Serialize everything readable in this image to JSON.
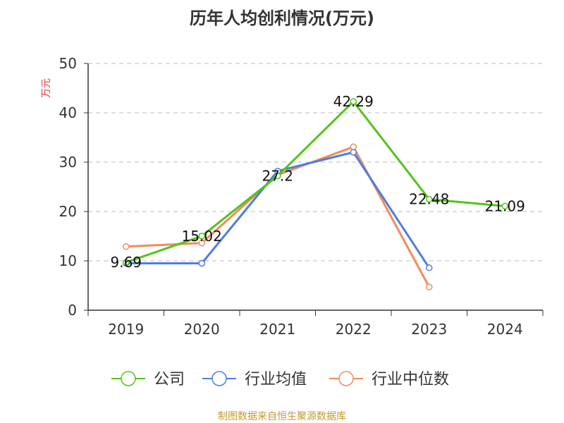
{
  "chart_data": {
    "type": "line",
    "title": "历年人均创利情况(万元)",
    "ylabel": "万元",
    "categories": [
      "2019",
      "2020",
      "2021",
      "2022",
      "2023",
      "2024"
    ],
    "ylim": [
      0,
      50
    ],
    "yticks": [
      0,
      10,
      20,
      30,
      40,
      50
    ],
    "grid": true,
    "legend_position": "bottom",
    "series": [
      {
        "name": "公司",
        "color": "#52c41a",
        "values": [
          9.69,
          15.02,
          27.2,
          42.29,
          22.48,
          21.09
        ],
        "labels": [
          "9.69",
          "15.02",
          "27.2",
          "42.29",
          "22.48",
          "21.09"
        ]
      },
      {
        "name": "行业均值",
        "color": "#4e7ee0",
        "values": [
          9.5,
          9.5,
          28.2,
          32.0,
          8.6,
          null
        ]
      },
      {
        "name": "行业中位数",
        "color": "#f08c5c",
        "values": [
          12.9,
          13.6,
          27.4,
          33.1,
          4.7,
          null
        ]
      }
    ]
  },
  "footer": {
    "source": "制图数据来自恒生聚源数据库"
  },
  "colors": {
    "axis": "#333333",
    "grid": "#bbbbbb",
    "ylabel": "#e5383b"
  }
}
